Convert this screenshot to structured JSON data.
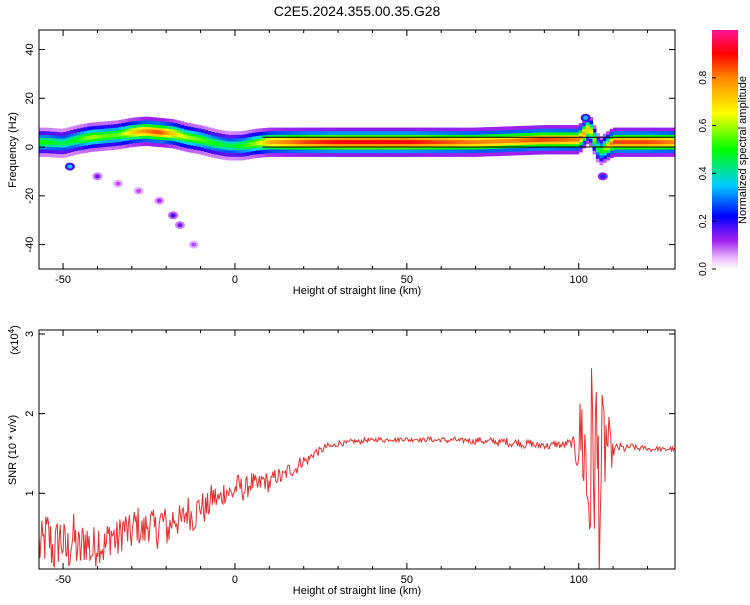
{
  "title": "C2E5.2024.355.00.35.G28",
  "colors": {
    "snr_line": "#e8302e",
    "axis": "#000000",
    "reference_line": "#000000"
  },
  "chart_data": [
    {
      "type": "heatmap",
      "name": "spectrogram",
      "xlabel": "Height of straight line (km)",
      "ylabel": "Frequency (Hz)",
      "xlim": [
        -57,
        128
      ],
      "ylim": [
        -50,
        48
      ],
      "xticks": [
        -50,
        0,
        50,
        100
      ],
      "yticks": [
        40,
        20,
        0,
        -20,
        -40
      ],
      "colorbar": {
        "label": "Normalized spectral amplitude",
        "range": [
          0,
          1
        ],
        "ticks": [
          "0.0",
          "0.2",
          "0.4",
          "0.6",
          "0.8"
        ],
        "colormap": "rainbow (white → purple → blue → cyan → green → yellow → red → magenta)"
      },
      "reference_lines": [
        {
          "y": 4,
          "x_from": 8,
          "x_to": 128
        },
        {
          "y": 0,
          "x_from": 8,
          "x_to": 128
        }
      ],
      "ridge": [
        {
          "x": -55,
          "f": 2,
          "amp": 0.5
        },
        {
          "x": -50,
          "f": 1.5,
          "amp": 0.45
        },
        {
          "x": -46,
          "f": 3,
          "amp": 0.5
        },
        {
          "x": -42,
          "f": 4,
          "amp": 0.6
        },
        {
          "x": -38,
          "f": 4.5,
          "amp": 0.55
        },
        {
          "x": -34,
          "f": 5,
          "amp": 0.55
        },
        {
          "x": -30,
          "f": 6,
          "amp": 0.7
        },
        {
          "x": -26,
          "f": 6.5,
          "amp": 0.8
        },
        {
          "x": -22,
          "f": 6,
          "amp": 0.85
        },
        {
          "x": -18,
          "f": 5.5,
          "amp": 0.7
        },
        {
          "x": -14,
          "f": 4,
          "amp": 0.6
        },
        {
          "x": -10,
          "f": 3,
          "amp": 0.55
        },
        {
          "x": -6,
          "f": 1.5,
          "amp": 0.5
        },
        {
          "x": -2,
          "f": 0.5,
          "amp": 0.45
        },
        {
          "x": 2,
          "f": 0.5,
          "amp": 0.5
        },
        {
          "x": 6,
          "f": 1.5,
          "amp": 0.6
        },
        {
          "x": 10,
          "f": 2,
          "amp": 0.75
        },
        {
          "x": 20,
          "f": 2,
          "amp": 0.85
        },
        {
          "x": 30,
          "f": 2,
          "amp": 0.9
        },
        {
          "x": 40,
          "f": 2,
          "amp": 0.9
        },
        {
          "x": 50,
          "f": 2,
          "amp": 0.9
        },
        {
          "x": 60,
          "f": 2,
          "amp": 0.85
        },
        {
          "x": 70,
          "f": 2,
          "amp": 0.8
        },
        {
          "x": 80,
          "f": 2.5,
          "amp": 0.8
        },
        {
          "x": 90,
          "f": 3,
          "amp": 0.85
        },
        {
          "x": 100,
          "f": 3,
          "amp": 0.8
        },
        {
          "x": 103,
          "f": 8,
          "amp": 0.7
        },
        {
          "x": 106,
          "f": -2,
          "amp": 0.45
        },
        {
          "x": 110,
          "f": 2,
          "amp": 0.85
        },
        {
          "x": 120,
          "f": 2,
          "amp": 0.85
        },
        {
          "x": 128,
          "f": 2,
          "amp": 0.8
        }
      ],
      "spots": [
        {
          "x": -48,
          "f": -8,
          "amp": 0.35
        },
        {
          "x": -40,
          "f": -12,
          "amp": 0.15
        },
        {
          "x": -34,
          "f": -15,
          "amp": 0.1
        },
        {
          "x": -28,
          "f": -18,
          "amp": 0.1
        },
        {
          "x": -22,
          "f": -22,
          "amp": 0.12
        },
        {
          "x": -18,
          "f": -28,
          "amp": 0.18
        },
        {
          "x": -16,
          "f": -32,
          "amp": 0.15
        },
        {
          "x": -12,
          "f": -40,
          "amp": 0.1
        },
        {
          "x": 102,
          "f": 12,
          "amp": 0.35
        },
        {
          "x": 107,
          "f": -12,
          "amp": 0.25
        }
      ]
    },
    {
      "type": "line",
      "name": "snr",
      "xlabel": "Height of straight line (km)",
      "ylabel": "SNR (10 * v/v)",
      "y_multiplier_label": "(x10",
      "y_multiplier_exponent": "4",
      "xlim": [
        -57,
        128
      ],
      "ylim": [
        0.05,
        3.05
      ],
      "xticks": [
        -50,
        0,
        50,
        100
      ],
      "yticks": [
        1,
        2,
        3
      ],
      "series": [
        {
          "x": [
            -57,
            -50,
            -40,
            -30,
            -20,
            -10,
            -5,
            0,
            5,
            10,
            15,
            20,
            25,
            30,
            35,
            40,
            50,
            60,
            70,
            80,
            90,
            98,
            100,
            102,
            104,
            106,
            108,
            110,
            115,
            120,
            128
          ],
          "y": [
            0.4,
            0.35,
            0.35,
            0.55,
            0.6,
            0.8,
            0.95,
            1.05,
            1.1,
            1.15,
            1.25,
            1.4,
            1.55,
            1.62,
            1.65,
            1.67,
            1.68,
            1.67,
            1.66,
            1.64,
            1.6,
            1.62,
            1.6,
            1.5,
            1.2,
            1.4,
            1.5,
            1.55,
            1.58,
            1.56,
            1.55
          ],
          "noise": [
            0.35,
            0.35,
            0.3,
            0.25,
            0.25,
            0.2,
            0.18,
            0.15,
            0.15,
            0.12,
            0.1,
            0.08,
            0.05,
            0.04,
            0.03,
            0.03,
            0.03,
            0.03,
            0.04,
            0.05,
            0.05,
            0.05,
            0.4,
            1.2,
            1.4,
            1.2,
            0.6,
            0.08,
            0.04,
            0.03,
            0.03
          ]
        }
      ]
    }
  ]
}
